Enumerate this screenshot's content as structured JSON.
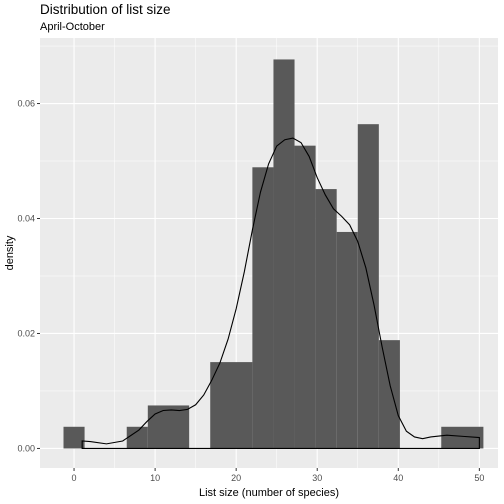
{
  "chart_data": {
    "type": "bar",
    "title": "Distribution of list size",
    "subtitle": "April-October",
    "xlabel": "List size (number of species)",
    "ylabel": "density",
    "xlim": [
      -4.2,
      52.3
    ],
    "ylim": [
      -0.0034,
      0.0714
    ],
    "x_ticks": [
      0,
      10,
      20,
      30,
      40,
      50
    ],
    "y_ticks": [
      0.0,
      0.02,
      0.04,
      0.06
    ],
    "y_tick_labels": [
      "0.00",
      "0.02",
      "0.04",
      "0.06"
    ],
    "bins": [
      {
        "x0": -1.3,
        "x1": 1.3,
        "density": 0.00377
      },
      {
        "x0": 6.5,
        "x1": 9.1,
        "density": 0.00377
      },
      {
        "x0": 9.1,
        "x1": 14.2,
        "density": 0.00748
      },
      {
        "x0": 16.8,
        "x1": 22.0,
        "density": 0.01502
      },
      {
        "x0": 22.0,
        "x1": 24.6,
        "density": 0.04891
      },
      {
        "x0": 24.6,
        "x1": 27.2,
        "density": 0.06767
      },
      {
        "x0": 27.2,
        "x1": 29.8,
        "density": 0.05267
      },
      {
        "x0": 29.8,
        "x1": 32.4,
        "density": 0.04512
      },
      {
        "x0": 32.4,
        "x1": 35.0,
        "density": 0.03766
      },
      {
        "x0": 35.0,
        "x1": 37.6,
        "density": 0.05641
      },
      {
        "x0": 37.6,
        "x1": 40.2,
        "density": 0.01884
      },
      {
        "x0": 45.3,
        "x1": 50.5,
        "density": 0.00377
      }
    ],
    "density_curve": {
      "x": [
        1,
        2,
        4,
        6,
        8,
        9,
        10,
        11,
        12,
        13,
        14,
        15,
        16,
        17,
        18,
        19,
        20,
        21,
        22,
        23,
        24,
        25,
        26,
        27,
        28,
        29,
        30,
        31,
        32,
        33,
        34,
        35,
        36,
        37,
        38,
        39,
        40,
        41,
        42,
        43,
        44,
        46,
        48,
        50
      ],
      "y": [
        0.0013,
        0.0012,
        0.0008,
        0.0013,
        0.0032,
        0.0047,
        0.006,
        0.0066,
        0.0067,
        0.0066,
        0.0068,
        0.0076,
        0.0093,
        0.0119,
        0.0149,
        0.019,
        0.0243,
        0.0307,
        0.038,
        0.0446,
        0.0495,
        0.0526,
        0.0537,
        0.054,
        0.0532,
        0.0508,
        0.0471,
        0.0441,
        0.0417,
        0.0404,
        0.0389,
        0.036,
        0.0314,
        0.025,
        0.0177,
        0.0109,
        0.0057,
        0.003,
        0.002,
        0.0017,
        0.002,
        0.0023,
        0.0021,
        0.0019
      ]
    },
    "grid": true,
    "legend": "none"
  },
  "colors": {
    "panel": "#ebebeb",
    "grid_major": "#ffffff",
    "bar": "#595959",
    "line": "#000000",
    "axis_text": "#4d4d4d"
  }
}
